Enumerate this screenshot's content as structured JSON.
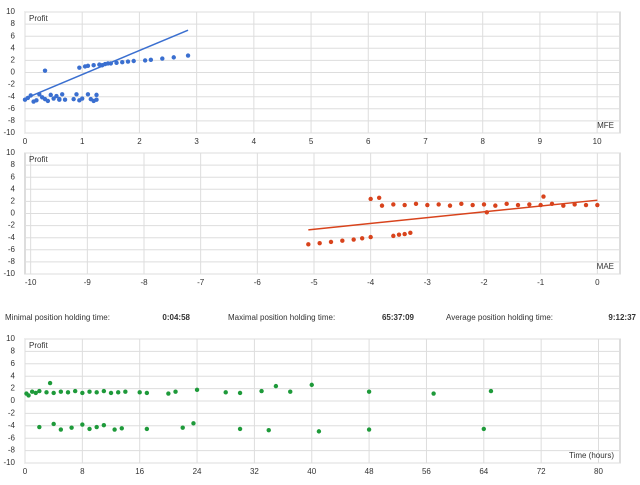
{
  "chart_data": [
    {
      "type": "scatter",
      "ylabel": "Profit",
      "xlabel": "MFE",
      "color": "#3a6fd0",
      "xlim": [
        0,
        10.4
      ],
      "ylim": [
        -10,
        10
      ],
      "xticks": [
        0,
        1,
        2,
        3,
        4,
        5,
        6,
        7,
        8,
        9,
        10
      ],
      "yticks": [
        10,
        8,
        6,
        4,
        2,
        0,
        -2,
        -4,
        -6,
        -8,
        -10
      ],
      "x": [
        0,
        0.05,
        0.1,
        0.15,
        0.2,
        0.25,
        0.3,
        0.35,
        0.4,
        0.45,
        0.5,
        0.55,
        0.6,
        0.65,
        0.35,
        0.85,
        0.9,
        0.95,
        1.0,
        1.1,
        1.15,
        1.2,
        1.25,
        1.25,
        0.6,
        0.7,
        0.95,
        1.05,
        1.1,
        1.2,
        1.3,
        1.4,
        1.5,
        1.6,
        1.7,
        1.8,
        1.9,
        2.1,
        2.2,
        2.4,
        2.6,
        2.85,
        1.35,
        1.45
      ],
      "values": [
        -4.5,
        -4.2,
        -3.8,
        -4.8,
        -4.6,
        -3.6,
        -4.1,
        -4.4,
        -4.7,
        -3.7,
        -4.3,
        -3.9,
        -4.5,
        -3.6,
        0.3,
        -4.4,
        -3.6,
        -4.6,
        -4.3,
        -3.6,
        -4.4,
        -4.7,
        -3.7,
        -4.5,
        -4.4,
        -4.5,
        0.8,
        1.0,
        1.1,
        1.2,
        1.3,
        1.4,
        1.5,
        1.6,
        1.7,
        1.8,
        1.9,
        2.0,
        2.1,
        2.3,
        2.5,
        2.8,
        1.2,
        1.5
      ],
      "trend": {
        "x": [
          0,
          2.85
        ],
        "y": [
          -4.3,
          7
        ]
      }
    },
    {
      "type": "scatter",
      "ylabel": "Profit",
      "xlabel": "MAE",
      "color": "#d8431c",
      "xlim": [
        -10.1,
        0.4
      ],
      "ylim": [
        -10,
        10
      ],
      "xticks": [
        -10,
        -9,
        -8,
        -7,
        -6,
        -5,
        -4,
        -3,
        -2,
        -1,
        0
      ],
      "yticks": [
        10,
        8,
        6,
        4,
        2,
        0,
        -2,
        -4,
        -6,
        -8,
        -10
      ],
      "x": [
        -5.1,
        -4.9,
        -4.7,
        -4.5,
        -4.3,
        -4.15,
        -4.0,
        -3.6,
        -3.5,
        -3.4,
        -3.3,
        -4.0,
        -3.85,
        -3.8,
        -3.6,
        -3.4,
        -3.2,
        -3.0,
        -2.8,
        -2.6,
        -2.4,
        -2.2,
        -2.0,
        -1.8,
        -1.6,
        -1.4,
        -1.2,
        -1.0,
        -0.95,
        -0.8,
        -0.6,
        -0.4,
        -0.2,
        0,
        -1.95
      ],
      "values": [
        -5.1,
        -4.9,
        -4.7,
        -4.5,
        -4.3,
        -4.1,
        -3.9,
        -3.7,
        -3.5,
        -3.4,
        -3.2,
        2.4,
        2.6,
        1.3,
        1.5,
        1.4,
        1.6,
        1.4,
        1.5,
        1.3,
        1.6,
        1.4,
        1.5,
        1.3,
        1.6,
        1.4,
        1.5,
        1.4,
        2.8,
        1.6,
        1.3,
        1.5,
        1.4,
        1.4,
        0.2
      ],
      "trend": {
        "x": [
          -5.1,
          0
        ],
        "y": [
          -2.7,
          2.2
        ]
      }
    },
    {
      "type": "scatter",
      "ylabel": "Profit",
      "xlabel": "Time (hours)",
      "color": "#1e9a3a",
      "xlim": [
        0,
        83
      ],
      "ylim": [
        -10,
        10
      ],
      "xticks": [
        0,
        8,
        16,
        24,
        32,
        40,
        48,
        56,
        64,
        72,
        80
      ],
      "yticks": [
        10,
        8,
        6,
        4,
        2,
        0,
        -2,
        -4,
        -6,
        -8,
        -10
      ],
      "x": [
        0.2,
        0.5,
        1,
        1.5,
        2,
        3,
        3.5,
        4,
        5,
        6,
        7,
        8,
        9,
        10,
        11,
        12,
        13,
        14,
        16,
        17,
        20,
        21,
        24,
        28,
        30,
        33,
        35,
        37,
        40,
        48,
        57,
        65,
        2,
        4,
        5,
        6.5,
        8,
        9,
        10,
        11,
        12.5,
        13.5,
        17,
        22,
        23.5,
        30,
        34,
        41,
        48,
        64
      ],
      "values": [
        1.2,
        0.9,
        1.5,
        1.3,
        1.6,
        1.4,
        2.9,
        1.3,
        1.5,
        1.4,
        1.6,
        1.3,
        1.5,
        1.4,
        1.6,
        1.3,
        1.4,
        1.5,
        1.4,
        1.3,
        1.2,
        1.5,
        1.8,
        1.4,
        1.3,
        1.6,
        2.4,
        1.5,
        2.6,
        1.5,
        1.2,
        1.6,
        -4.2,
        -3.7,
        -4.6,
        -4.3,
        -3.8,
        -4.5,
        -4.2,
        -3.9,
        -4.6,
        -4.4,
        -4.5,
        -4.3,
        -3.6,
        -4.5,
        -4.7,
        -4.9,
        -4.6,
        -4.5
      ]
    }
  ],
  "stats": [
    {
      "label": "Minimal position holding time:",
      "value": "0:04:58"
    },
    {
      "label": "Maximal position holding time:",
      "value": "65:37:09"
    },
    {
      "label": "Average position holding time:",
      "value": "9:12:37"
    }
  ]
}
